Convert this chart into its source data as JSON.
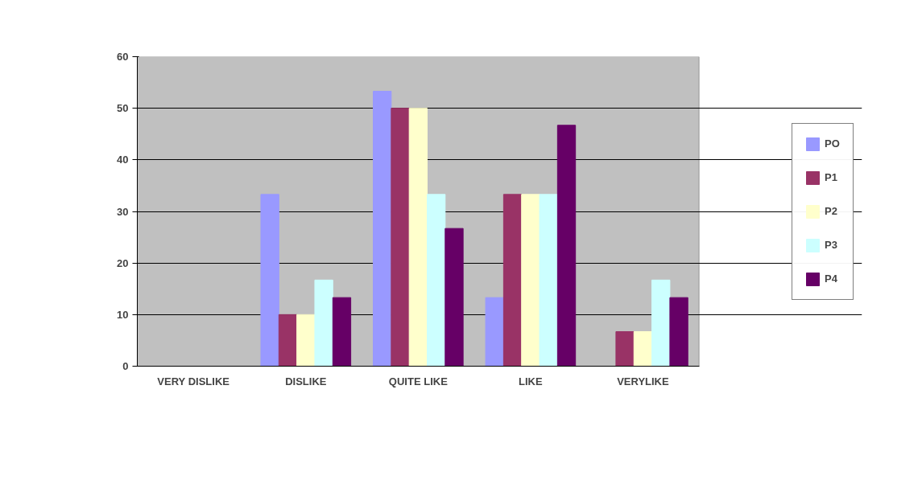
{
  "chart_data": {
    "type": "bar",
    "categories": [
      "VERY DISLIKE",
      "DISLIKE",
      "QUITE LIKE",
      "LIKE",
      "VERYLIKE"
    ],
    "series": [
      {
        "name": "PO",
        "color": "#9999ff",
        "values": [
          0,
          33.3,
          53.3,
          13.3,
          0
        ]
      },
      {
        "name": "P1",
        "color": "#993366",
        "values": [
          0,
          10,
          50,
          33.3,
          6.7
        ]
      },
      {
        "name": "P2",
        "color": "#ffffcc",
        "values": [
          0,
          10,
          50,
          33.3,
          6.7
        ]
      },
      {
        "name": "P3",
        "color": "#ccffff",
        "values": [
          0,
          16.7,
          33.3,
          33.3,
          16.7
        ]
      },
      {
        "name": "P4",
        "color": "#660066",
        "values": [
          0,
          13.3,
          26.7,
          46.7,
          13.3
        ]
      }
    ],
    "ylim": [
      0,
      60
    ],
    "yticks": [
      0,
      10,
      20,
      30,
      40,
      50,
      60
    ],
    "grid": "y",
    "legend": "right"
  }
}
